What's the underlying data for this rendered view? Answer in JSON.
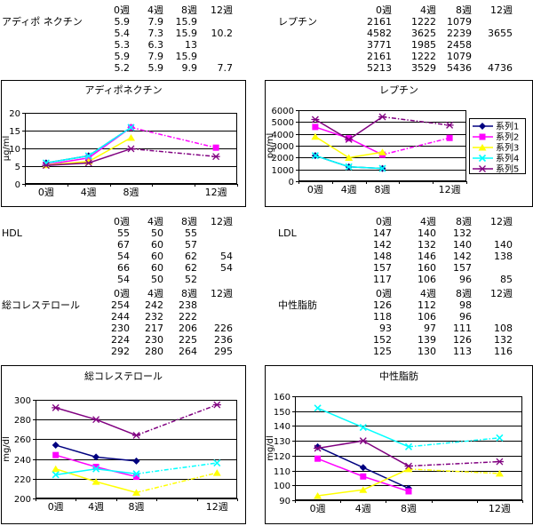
{
  "colors": {
    "background": "#FFFFFF",
    "text": "#000000",
    "grid": "#000000",
    "chart_border": "#000000",
    "series": [
      "#000080",
      "#FF00FF",
      "#FFFF00",
      "#00FFFF",
      "#800080"
    ]
  },
  "series_names": [
    "系列1",
    "系列2",
    "系列3",
    "系列4",
    "系列5"
  ],
  "tables": [
    {
      "label": "アディポ ネクチン",
      "columns": [
        "0週",
        "4週",
        "8週",
        "12週"
      ],
      "rows": [
        [
          "5.9",
          "7.9",
          "15.9",
          ""
        ],
        [
          "5.4",
          "7.3",
          "15.9",
          "10.2"
        ],
        [
          "5.3",
          "6.3",
          "13",
          ""
        ],
        [
          "5.9",
          "7.9",
          "15.9",
          ""
        ],
        [
          "5.2",
          "5.9",
          "9.9",
          "7.7"
        ]
      ]
    },
    {
      "label": "レプチン",
      "columns": [
        "0週",
        "4週",
        "8週",
        "12週"
      ],
      "rows": [
        [
          "2161",
          "1222",
          "1079",
          ""
        ],
        [
          "4582",
          "3625",
          "2239",
          "3655"
        ],
        [
          "3771",
          "1985",
          "2458",
          ""
        ],
        [
          "2161",
          "1222",
          "1079",
          ""
        ],
        [
          "5213",
          "3529",
          "5436",
          "4736"
        ]
      ]
    },
    {
      "label": "HDL",
      "columns": [
        "0週",
        "4週",
        "8週",
        "12週"
      ],
      "rows": [
        [
          "55",
          "50",
          "55",
          ""
        ],
        [
          "67",
          "60",
          "57",
          ""
        ],
        [
          "54",
          "60",
          "62",
          "54"
        ],
        [
          "66",
          "60",
          "62",
          "54"
        ],
        [
          "54",
          "50",
          "52",
          ""
        ]
      ]
    },
    {
      "label": "LDL",
      "columns": [
        "0週",
        "4週",
        "8週",
        "12週"
      ],
      "rows": [
        [
          "147",
          "140",
          "132",
          ""
        ],
        [
          "142",
          "132",
          "140",
          "140"
        ],
        [
          "148",
          "146",
          "142",
          "138"
        ],
        [
          "157",
          "160",
          "157",
          ""
        ],
        [
          "117",
          "106",
          "96",
          "85"
        ]
      ]
    },
    {
      "label": "総コレステロール",
      "columns": [
        "0週",
        "4週",
        "8週",
        "12週"
      ],
      "rows": [
        [
          "254",
          "242",
          "238",
          ""
        ],
        [
          "244",
          "232",
          "222",
          ""
        ],
        [
          "230",
          "217",
          "206",
          "226"
        ],
        [
          "224",
          "230",
          "225",
          "236"
        ],
        [
          "292",
          "280",
          "264",
          "295"
        ]
      ]
    },
    {
      "label": "中性脂肪",
      "columns": [
        "0週",
        "4週",
        "8週",
        "12週"
      ],
      "rows": [
        [
          "126",
          "112",
          "98",
          ""
        ],
        [
          "118",
          "106",
          "96",
          ""
        ],
        [
          "93",
          "97",
          "111",
          "108"
        ],
        [
          "152",
          "139",
          "126",
          "132"
        ],
        [
          "125",
          "130",
          "113",
          "116"
        ]
      ]
    }
  ],
  "chart_data": [
    {
      "type": "line",
      "title": "アディポネクチン",
      "xlabel": "",
      "ylabel": "μg/ml",
      "ylim": [
        0,
        20
      ],
      "yticks": [
        0,
        5,
        10,
        15,
        20
      ],
      "categories": [
        "0週",
        "4週",
        "8週",
        "12週"
      ],
      "grid": true,
      "legend": false,
      "series": [
        {
          "name": "系列1",
          "marker": "diamond",
          "values": [
            5.9,
            7.9,
            15.9,
            null
          ]
        },
        {
          "name": "系列2",
          "marker": "square",
          "values": [
            5.4,
            7.3,
            15.9,
            10.2
          ]
        },
        {
          "name": "系列3",
          "marker": "triangle",
          "values": [
            5.3,
            6.3,
            13,
            null
          ]
        },
        {
          "name": "系列4",
          "marker": "x",
          "values": [
            5.9,
            7.9,
            15.9,
            null
          ]
        },
        {
          "name": "系列5",
          "marker": "star",
          "values": [
            5.2,
            5.9,
            9.9,
            7.7
          ]
        }
      ]
    },
    {
      "type": "line",
      "title": "レプチン",
      "xlabel": "",
      "ylabel": "pg/ml",
      "ylim": [
        0,
        6000
      ],
      "yticks": [
        0,
        1000,
        2000,
        3000,
        4000,
        5000,
        6000
      ],
      "categories": [
        "0週",
        "4週",
        "8週",
        "12週"
      ],
      "grid": true,
      "legend": true,
      "legend_position": "right",
      "series": [
        {
          "name": "系列1",
          "marker": "diamond",
          "values": [
            2161,
            1222,
            1079,
            null
          ]
        },
        {
          "name": "系列2",
          "marker": "square",
          "values": [
            4582,
            3625,
            2239,
            3655
          ]
        },
        {
          "name": "系列3",
          "marker": "triangle",
          "values": [
            3771,
            1985,
            2458,
            null
          ]
        },
        {
          "name": "系列4",
          "marker": "x",
          "values": [
            2161,
            1222,
            1079,
            null
          ]
        },
        {
          "name": "系列5",
          "marker": "star",
          "values": [
            5213,
            3529,
            5436,
            4736
          ]
        }
      ]
    },
    {
      "type": "line",
      "title": "総コレステロール",
      "xlabel": "",
      "ylabel": "mg/dl",
      "ylim": [
        200,
        300
      ],
      "yticks": [
        200,
        220,
        240,
        260,
        280,
        300
      ],
      "categories": [
        "0週",
        "4週",
        "8週",
        "12週"
      ],
      "grid": true,
      "legend": false,
      "series": [
        {
          "name": "系列1",
          "marker": "diamond",
          "values": [
            254,
            242,
            238,
            null
          ]
        },
        {
          "name": "系列2",
          "marker": "square",
          "values": [
            244,
            232,
            222,
            null
          ]
        },
        {
          "name": "系列3",
          "marker": "triangle",
          "values": [
            230,
            217,
            206,
            226
          ]
        },
        {
          "name": "系列4",
          "marker": "x",
          "values": [
            224,
            230,
            225,
            236
          ]
        },
        {
          "name": "系列5",
          "marker": "star",
          "values": [
            292,
            280,
            264,
            295
          ]
        }
      ]
    },
    {
      "type": "line",
      "title": "中性脂肪",
      "xlabel": "",
      "ylabel": "mg/dl",
      "ylim": [
        90,
        160
      ],
      "yticks": [
        90,
        100,
        110,
        120,
        130,
        140,
        150,
        160
      ],
      "categories": [
        "0週",
        "4週",
        "8週",
        "12週"
      ],
      "grid": true,
      "legend": false,
      "series": [
        {
          "name": "系列1",
          "marker": "diamond",
          "values": [
            126,
            112,
            98,
            null
          ]
        },
        {
          "name": "系列2",
          "marker": "square",
          "values": [
            118,
            106,
            96,
            null
          ]
        },
        {
          "name": "系列3",
          "marker": "triangle",
          "values": [
            93,
            97,
            111,
            108
          ]
        },
        {
          "name": "系列4",
          "marker": "x",
          "values": [
            152,
            139,
            126,
            132
          ]
        },
        {
          "name": "系列5",
          "marker": "star",
          "values": [
            125,
            130,
            113,
            116
          ]
        }
      ]
    }
  ]
}
